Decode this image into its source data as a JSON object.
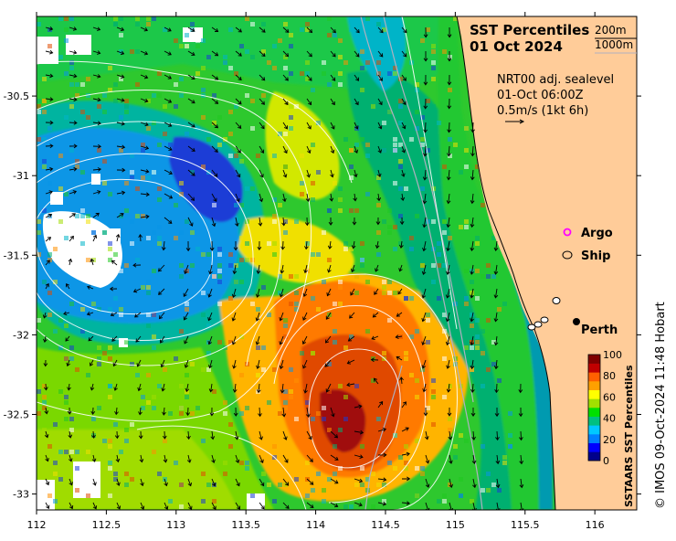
{
  "title": {
    "line1": "SST Percentiles",
    "line2": "01 Oct 2024"
  },
  "depth_legend": {
    "contour1": "200m",
    "contour2": "1000m"
  },
  "current_info": {
    "line1": "NRT00 adj. sealevel",
    "line2": "01-Oct 06:00Z",
    "line3": "0.5m/s (1kt 6h)"
  },
  "symbol_legend": {
    "argo": "Argo",
    "ship": "Ship",
    "argo_color": "#ff00ff"
  },
  "places": [
    {
      "name": "Perth",
      "lon": 115.86,
      "lat": -31.95
    }
  ],
  "x_axis": {
    "ticks": [
      112,
      112.5,
      113,
      113.5,
      114,
      114.5,
      115,
      115.5,
      116
    ],
    "labels": [
      "112",
      "112.5",
      "113",
      "113.5",
      "114",
      "114.5",
      "115",
      "115.5",
      "116"
    ]
  },
  "y_axis": {
    "ticks": [
      -30.5,
      -31,
      -31.5,
      -32,
      -32.5,
      -33
    ],
    "labels": [
      "-30.5",
      "-31",
      "-31.5",
      "-32",
      "-32.5",
      "-33"
    ]
  },
  "colorbar": {
    "label": "SSTAARS SST Percentiles",
    "ticks": [
      "0",
      "20",
      "40",
      "60",
      "80",
      "100"
    ],
    "colors": [
      "#00008b",
      "#0000ff",
      "#0080ff",
      "#00c8ff",
      "#00c080",
      "#00e000",
      "#a0e000",
      "#ffff00",
      "#ffa000",
      "#ff6000",
      "#c00000",
      "#800000"
    ]
  },
  "credit": "© IMOS 09-Oct-2024 11:48 Hobart",
  "land_color": "#ffcc99"
}
